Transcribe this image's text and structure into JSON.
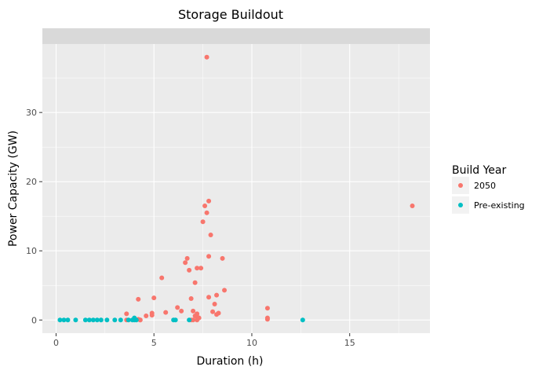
{
  "chart_data": {
    "type": "scatter",
    "title": "Storage Buildout",
    "facet_strip": "",
    "xlabel": "Duration (h)",
    "ylabel": "Power Capacity (GW)",
    "xlim": [
      -0.7,
      19.1
    ],
    "ylim": [
      -1.9,
      39.9
    ],
    "xticks": [
      0,
      5,
      10,
      15
    ],
    "yticks": [
      0,
      10,
      20,
      30
    ],
    "minor_xticks": [
      2.5,
      7.5,
      12.5,
      17.5
    ],
    "minor_yticks": [
      5,
      15,
      25,
      35
    ],
    "grid": true,
    "legend": {
      "title": "Build Year",
      "position": "right"
    },
    "series": [
      {
        "name": "2050",
        "color": "#F8766D",
        "x": [
          7.7,
          18.2,
          7.8,
          7.6,
          7.7,
          7.5,
          7.9,
          5.4,
          7.8,
          8.5,
          6.7,
          6.6,
          7.4,
          7.2,
          6.8,
          7.1,
          8.6,
          7.8,
          8.2,
          6.9,
          8.1,
          4.2,
          5.0,
          6.2,
          10.8,
          6.4,
          5.6,
          8.0,
          8.3,
          7.0,
          4.9,
          3.6,
          7.2,
          8.2,
          7.1,
          7.2,
          4.6,
          4.9,
          7.3,
          10.8,
          10.8,
          3.6,
          4.3,
          6.9,
          4.3,
          4.2,
          7.0,
          7.2
        ],
        "y": [
          38.0,
          16.5,
          17.2,
          16.5,
          15.5,
          14.2,
          12.3,
          6.1,
          9.2,
          8.9,
          8.9,
          8.3,
          7.5,
          7.5,
          7.2,
          5.4,
          4.3,
          3.3,
          3.6,
          3.1,
          2.3,
          3.0,
          3.2,
          1.8,
          1.7,
          1.3,
          1.1,
          1.2,
          1.0,
          1.3,
          1.0,
          0.9,
          0.9,
          0.8,
          0.6,
          0.5,
          0.6,
          0.7,
          0.3,
          0.3,
          0.1,
          0.0,
          0.0,
          0.0,
          0.0,
          0.1,
          0.0,
          0.0
        ]
      },
      {
        "name": "Pre-existing",
        "color": "#00BFC4",
        "x": [
          0.2,
          0.4,
          0.6,
          1.0,
          1.5,
          1.7,
          1.9,
          2.1,
          2.3,
          2.6,
          3.0,
          3.3,
          3.7,
          3.9,
          4.0,
          4.1,
          4.0,
          6.0,
          6.1,
          6.8,
          12.6
        ],
        "y": [
          0.0,
          0.0,
          0.0,
          0.0,
          0.0,
          0.0,
          0.0,
          0.0,
          0.0,
          0.0,
          0.0,
          0.0,
          0.0,
          0.0,
          0.0,
          0.0,
          0.3,
          0.0,
          0.0,
          0.0,
          0.0
        ]
      }
    ]
  },
  "colors": {
    "panel_background": "#EBEBEB",
    "grid_major": "#FFFFFF",
    "strip_background": "#D9D9D9",
    "tick_color": "#333333",
    "legend_key_background": "#F2F2F2"
  }
}
